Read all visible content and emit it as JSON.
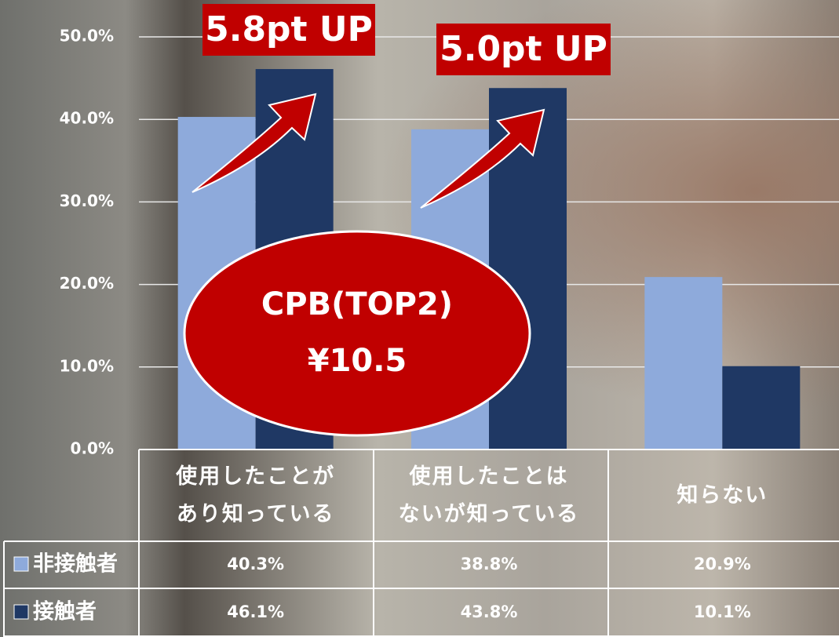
{
  "chart_data": {
    "type": "bar",
    "categories": [
      "使用したことが\nあり知っている",
      "使用したことは\nないが知っている",
      "知らない"
    ],
    "series": [
      {
        "name": "非接触者",
        "color": "#8eaadb",
        "values": [
          40.3,
          38.8,
          20.9
        ],
        "value_labels": [
          "40.3%",
          "38.8%",
          "20.9%"
        ]
      },
      {
        "name": "接触者",
        "color": "#1f3864",
        "values": [
          46.1,
          43.8,
          10.1
        ],
        "value_labels": [
          "46.1%",
          "43.8%",
          "10.1%"
        ]
      }
    ],
    "ylim": [
      0,
      50
    ],
    "yticks": [
      {
        "value": 0,
        "label": "0.0%"
      },
      {
        "value": 10,
        "label": "10.0%"
      },
      {
        "value": 20,
        "label": "20.0%"
      },
      {
        "value": 30,
        "label": "30.0%"
      },
      {
        "value": 40,
        "label": "40.0%"
      },
      {
        "value": 50,
        "label": "50.0%"
      }
    ],
    "grid": true,
    "annotations": [
      "5.8pt UP",
      "5.0pt UP"
    ],
    "callout": [
      "CPB(TOP2)",
      "¥10.5"
    ]
  }
}
